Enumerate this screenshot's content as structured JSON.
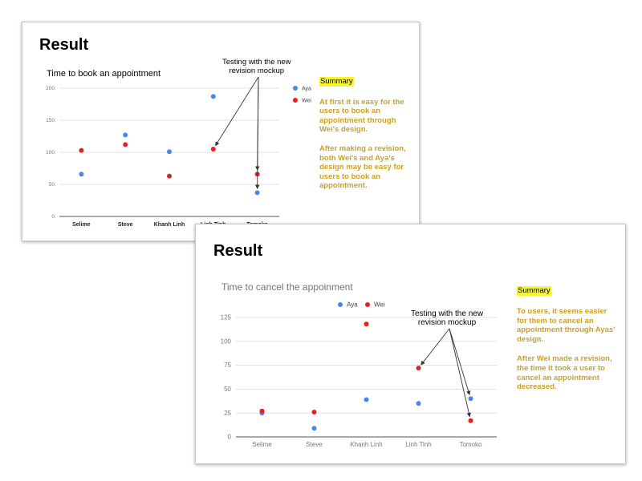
{
  "slides": [
    {
      "title": "Result",
      "annotation_line1": "Testing with the new",
      "annotation_line2": "revision mockup",
      "summary": {
        "heading": "Summary",
        "paragraph1": "At first it is easy for the users  to book an appointment through Wei's design.",
        "paragraph2": "After making a revision, both Wei's and Aya's design may be easy for users to book an appointment."
      }
    },
    {
      "title": "Result",
      "annotation_line1": "Testing with the new",
      "annotation_line2": "revision mockup",
      "summary": {
        "heading": "Summary",
        "paragraph1": "To users, it seems easier for them to cancel an appointment through Ayas' design.",
        "paragraph2": "After Wei made a revision, the time it took a user  to cancel an appointment decreased."
      }
    }
  ],
  "chart_data": [
    {
      "type": "scatter",
      "title": "Time to book an appointment",
      "categories": [
        "Selime",
        "Steve",
        "Khanh Linh",
        "Linh Tinh",
        "Tomoko"
      ],
      "series": [
        {
          "name": "Aya",
          "color": "#4a86e8",
          "values": [
            66,
            127,
            101,
            187,
            37
          ]
        },
        {
          "name": "Wei",
          "color": "#e8201d",
          "values": [
            103,
            112,
            63,
            105,
            66
          ]
        }
      ],
      "yticks": [
        0,
        50,
        100,
        150,
        200
      ],
      "ylim": [
        0,
        200
      ],
      "grid": true,
      "legend_position": "right"
    },
    {
      "type": "scatter",
      "title": "Time to cancel the appoinment",
      "categories": [
        "Selime",
        "Steve",
        "Khanh Linh",
        "Linh Tinh",
        "Tomoko"
      ],
      "series": [
        {
          "name": "Aya",
          "color": "#4a86e8",
          "values": [
            25,
            9,
            39,
            35,
            40
          ]
        },
        {
          "name": "Wei",
          "color": "#e8201d",
          "values": [
            27,
            26,
            118,
            72,
            17
          ]
        }
      ],
      "yticks": [
        0,
        25,
        50,
        75,
        100,
        125
      ],
      "ylim": [
        0,
        130
      ],
      "grid": true,
      "legend_position": "top"
    }
  ]
}
